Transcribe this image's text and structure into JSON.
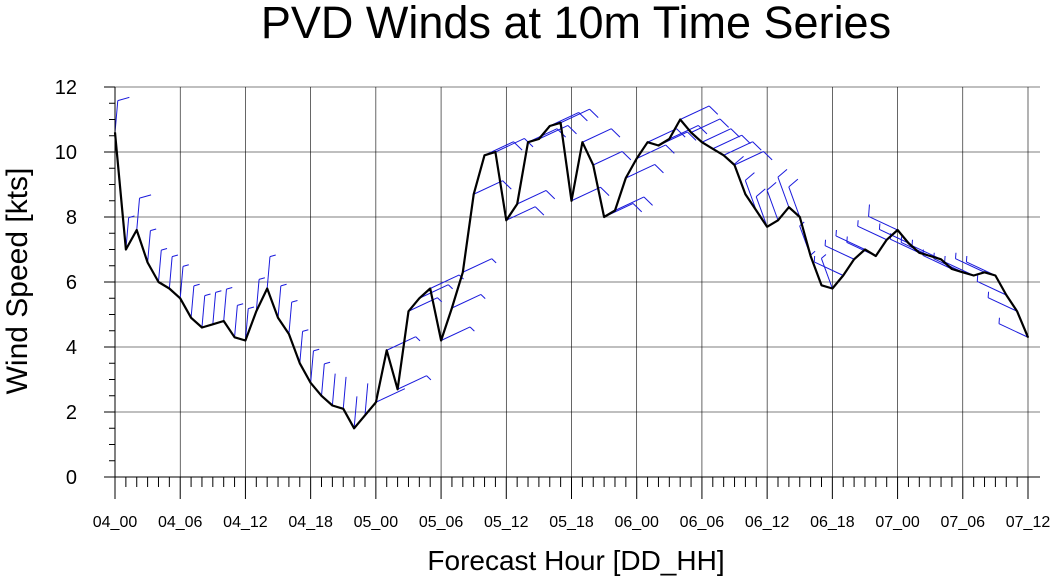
{
  "chart_data": {
    "type": "line",
    "title": "PVD Winds at 10m Time Series",
    "xlabel": "Forecast Hour [DD_HH]",
    "ylabel": "Wind Speed [kts]",
    "ylim": [
      0,
      12
    ],
    "xlim": [
      0,
      84
    ],
    "y_ticks": [
      "0",
      "2",
      "4",
      "6",
      "8",
      "10",
      "12"
    ],
    "x_ticks": [
      {
        "hour": 0,
        "label": "04_00"
      },
      {
        "hour": 6,
        "label": "04_06"
      },
      {
        "hour": 12,
        "label": "04_12"
      },
      {
        "hour": 18,
        "label": "04_18"
      },
      {
        "hour": 24,
        "label": "05_00"
      },
      {
        "hour": 30,
        "label": "05_06"
      },
      {
        "hour": 36,
        "label": "05_12"
      },
      {
        "hour": 42,
        "label": "05_18"
      },
      {
        "hour": 48,
        "label": "06_00"
      },
      {
        "hour": 54,
        "label": "06_06"
      },
      {
        "hour": 60,
        "label": "06_12"
      },
      {
        "hour": 66,
        "label": "06_18"
      },
      {
        "hour": 72,
        "label": "07_00"
      },
      {
        "hour": 78,
        "label": "07_06"
      },
      {
        "hour": 84,
        "label": "07_12"
      }
    ],
    "grid": true,
    "colors": {
      "line": "#000000",
      "barbs": "#1a1adc",
      "grid": "#000000"
    },
    "series": [
      {
        "values": [
          10.6,
          7.0,
          7.6,
          6.6,
          6.0,
          5.8,
          5.5,
          4.9,
          4.6,
          4.7,
          4.8,
          4.3,
          4.2,
          5.1,
          5.8,
          4.9,
          4.4,
          3.5,
          2.9,
          2.5,
          2.2,
          2.1,
          1.5,
          1.9,
          2.3,
          3.9,
          2.7,
          5.1,
          5.5,
          5.8,
          4.2,
          5.2,
          6.3,
          8.7,
          9.9,
          10.0,
          7.9,
          8.4,
          10.3,
          10.4,
          10.8,
          10.9,
          8.5,
          10.3,
          9.6,
          8.0,
          8.2,
          9.2,
          9.8,
          10.3,
          10.2,
          10.4,
          11.0,
          10.6,
          10.3,
          10.1,
          9.9,
          9.6,
          8.7,
          8.2,
          7.7,
          7.9,
          8.3,
          8.0,
          6.8,
          5.9,
          5.8,
          6.2,
          6.7,
          7.0,
          6.8,
          7.3,
          7.6,
          7.2,
          6.9,
          6.8,
          6.7,
          6.4,
          6.3,
          6.2,
          6.3,
          6.2,
          5.6,
          5.1,
          4.3
        ]
      }
    ]
  }
}
